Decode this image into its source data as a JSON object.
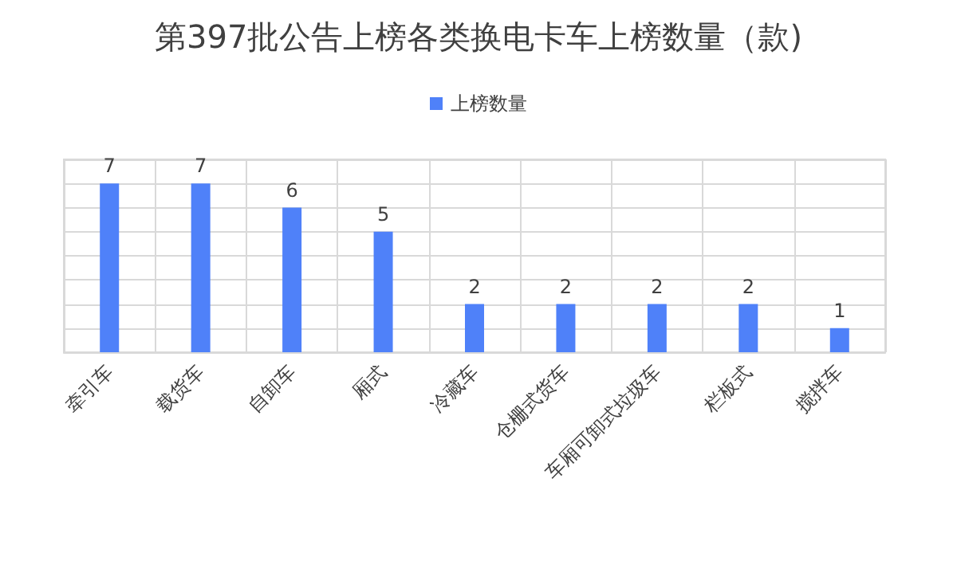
{
  "chart_data": {
    "type": "bar",
    "title": "第397批公告上榜各类换电卡车上榜数量（款)",
    "categories": [
      "牵引车",
      "载货车",
      "自卸车",
      "厢式",
      "冷藏车",
      "仓栅式货车",
      "车厢可卸式垃圾车",
      "栏板式",
      "搅拌车"
    ],
    "series": [
      {
        "name": "上榜数量",
        "color": "#4f81f9",
        "values": [
          7,
          7,
          6,
          5,
          2,
          2,
          2,
          2,
          1
        ]
      }
    ],
    "ylim": [
      0,
      8
    ],
    "yticks": [
      {
        "value": 0,
        "label": null
      },
      {
        "value": 1,
        "label": null
      },
      {
        "value": 2,
        "label": null
      },
      {
        "value": 3,
        "label": null
      },
      {
        "value": 4,
        "label": null
      },
      {
        "value": 5,
        "label": null
      },
      {
        "value": 6,
        "label": null
      },
      {
        "value": 7,
        "label": null
      },
      {
        "value": 8,
        "label": null
      }
    ],
    "tick_labels": "x",
    "grid": true,
    "legend": "top",
    "data_labels": true
  }
}
